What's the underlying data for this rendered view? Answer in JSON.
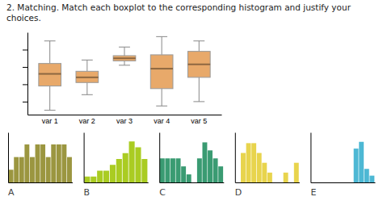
{
  "chart_data": [
    {
      "type": "box",
      "title": "2. Matching. Match each boxplot to the corresponding histogram and justify your choices.",
      "categories": [
        "var 1",
        "var 2",
        "var 3",
        "var 4",
        "var 5"
      ],
      "whislo": [
        1.0,
        2.8,
        6.2,
        1.5,
        2.0
      ],
      "q1": [
        3.8,
        4.2,
        6.7,
        3.5,
        4.8
      ],
      "med": [
        5.2,
        4.8,
        7.0,
        5.8,
        6.3
      ],
      "q3": [
        6.4,
        5.5,
        7.3,
        7.4,
        7.8
      ],
      "whishi": [
        9.0,
        6.8,
        8.3,
        9.5,
        9.0
      ],
      "color": "#E8A96A",
      "ylim": [
        0.5,
        10.0
      ],
      "yticks": [
        2,
        4,
        6,
        8
      ],
      "tick_labels": "x",
      "grid": false
    },
    {
      "type": "bar",
      "title": "A",
      "values": [
        1,
        2,
        2,
        3,
        2,
        3,
        3,
        2,
        3,
        3,
        3,
        2
      ],
      "color": "#9B9640",
      "ylim": [
        0,
        3.95
      ],
      "tick_labels": false
    },
    {
      "type": "bar",
      "title": "B",
      "values": [
        1,
        1,
        2,
        2,
        3,
        4,
        5,
        7,
        6,
        4
      ],
      "color": "#AACC22",
      "ylim": [
        0,
        8.55
      ],
      "tick_labels": false
    },
    {
      "type": "bar",
      "title": "C",
      "values": [
        3,
        3,
        3,
        3,
        2,
        1,
        0,
        3,
        5,
        4,
        3,
        2
      ],
      "color": "#3A9B72",
      "ylim": [
        0,
        6.25
      ],
      "tick_labels": false
    },
    {
      "type": "bar",
      "title": "D",
      "values": [
        0,
        3,
        4,
        4,
        3,
        2,
        1,
        0,
        0,
        1,
        0,
        2
      ],
      "color": "#E8D44D",
      "ylim": [
        0,
        5.1
      ],
      "tick_labels": false
    },
    {
      "type": "bar",
      "title": "E",
      "values": [
        0,
        0,
        0,
        0,
        0,
        0,
        0,
        0,
        5,
        6,
        2,
        1
      ],
      "color": "#4DB8D4",
      "ylim": [
        0,
        7.4
      ],
      "tick_labels": false
    }
  ]
}
